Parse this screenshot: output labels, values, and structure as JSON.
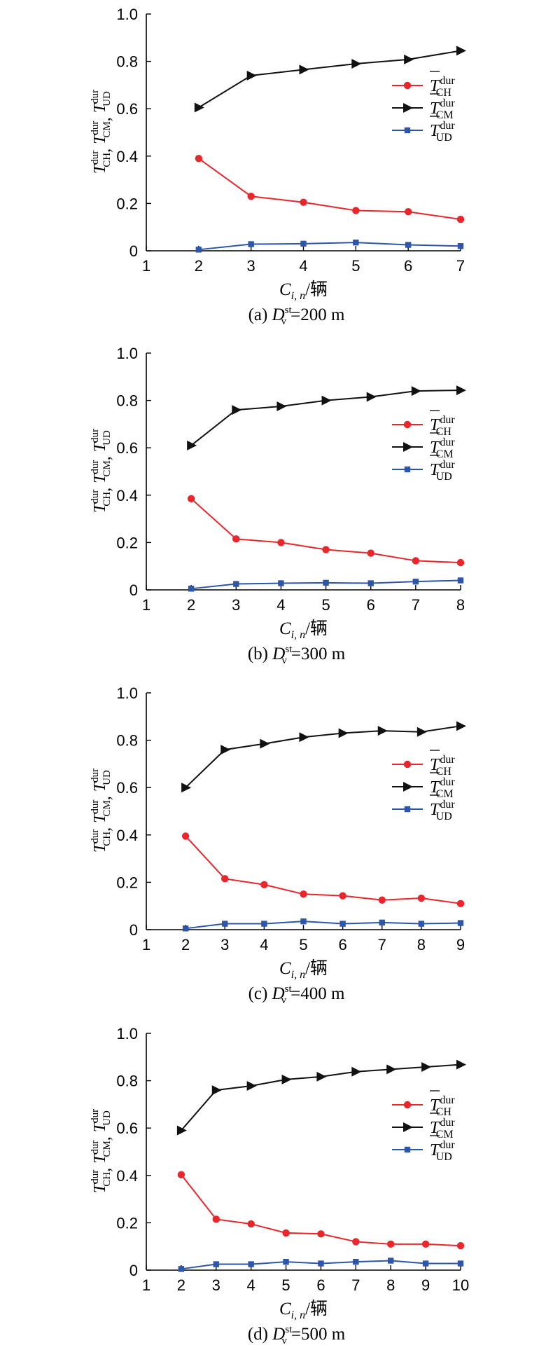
{
  "chart_data": [
    {
      "type": "line",
      "caption_prefix": "(a) ",
      "caption_var": "D",
      "caption_sub": "v",
      "caption_sup": "st",
      "caption_value": "=200 m",
      "xlabel_var": "C",
      "xlabel_sub": "i, n",
      "xlabel_unit": "/辆",
      "ylabel_parts": [
        "CH",
        "CM",
        "UD"
      ],
      "ylabel_var": "T",
      "ylabel_sup": "dur",
      "xlim": [
        1,
        7
      ],
      "ylim": [
        0,
        1.0
      ],
      "xticks": [
        "1",
        "2",
        "3",
        "4",
        "5",
        "6",
        "7"
      ],
      "yticks": [
        "0",
        "0.2",
        "0.4",
        "0.6",
        "0.8",
        "1.0"
      ],
      "x": [
        2,
        3,
        4,
        5,
        6,
        7
      ],
      "legend_position": "right-middle",
      "series": [
        {
          "name": "CH",
          "color": "#e8262b",
          "marker": "circle",
          "values": [
            0.39,
            0.23,
            0.205,
            0.17,
            0.165,
            0.133
          ]
        },
        {
          "name": "CM",
          "color": "#111111",
          "marker": "triangle-right",
          "values": [
            0.605,
            0.74,
            0.765,
            0.79,
            0.808,
            0.845
          ]
        },
        {
          "name": "UD",
          "color": "#2d55a8",
          "marker": "square",
          "values": [
            0.005,
            0.028,
            0.03,
            0.035,
            0.025,
            0.02
          ]
        }
      ]
    },
    {
      "type": "line",
      "caption_prefix": "(b) ",
      "caption_var": "D",
      "caption_sub": "v",
      "caption_sup": "st",
      "caption_value": "=300 m",
      "xlabel_var": "C",
      "xlabel_sub": "i, n",
      "xlabel_unit": "/辆",
      "ylabel_parts": [
        "CH",
        "CM",
        "UD"
      ],
      "ylabel_var": "T",
      "ylabel_sup": "dur",
      "xlim": [
        1,
        8
      ],
      "ylim": [
        0,
        1.0
      ],
      "xticks": [
        "1",
        "2",
        "3",
        "4",
        "5",
        "6",
        "7",
        "8"
      ],
      "yticks": [
        "0",
        "0.2",
        "0.4",
        "0.6",
        "0.8",
        "1.0"
      ],
      "x": [
        2,
        3,
        4,
        5,
        6,
        7,
        8
      ],
      "legend_position": "right-middle",
      "series": [
        {
          "name": "CH",
          "color": "#e8262b",
          "marker": "circle",
          "values": [
            0.385,
            0.215,
            0.2,
            0.17,
            0.155,
            0.123,
            0.115
          ]
        },
        {
          "name": "CM",
          "color": "#111111",
          "marker": "triangle-right",
          "values": [
            0.61,
            0.76,
            0.775,
            0.8,
            0.815,
            0.84,
            0.843
          ]
        },
        {
          "name": "UD",
          "color": "#2d55a8",
          "marker": "square",
          "values": [
            0.005,
            0.025,
            0.028,
            0.03,
            0.028,
            0.035,
            0.04
          ]
        }
      ]
    },
    {
      "type": "line",
      "caption_prefix": "(c) ",
      "caption_var": "D",
      "caption_sub": "v",
      "caption_sup": "st",
      "caption_value": "=400 m",
      "xlabel_var": "C",
      "xlabel_sub": "i, n",
      "xlabel_unit": "/辆",
      "ylabel_parts": [
        "CH",
        "CM",
        "UD"
      ],
      "ylabel_var": "T",
      "ylabel_sup": "dur",
      "xlim": [
        1,
        9
      ],
      "ylim": [
        0,
        1.0
      ],
      "xticks": [
        "1",
        "2",
        "3",
        "4",
        "5",
        "6",
        "7",
        "8",
        "9"
      ],
      "yticks": [
        "0",
        "0.2",
        "0.4",
        "0.6",
        "0.8",
        "1.0"
      ],
      "x": [
        2,
        3,
        4,
        5,
        6,
        7,
        8,
        9
      ],
      "legend_position": "right-middle",
      "series": [
        {
          "name": "CH",
          "color": "#e8262b",
          "marker": "circle",
          "values": [
            0.395,
            0.215,
            0.19,
            0.15,
            0.143,
            0.125,
            0.133,
            0.11
          ]
        },
        {
          "name": "CM",
          "color": "#111111",
          "marker": "triangle-right",
          "values": [
            0.6,
            0.76,
            0.785,
            0.813,
            0.83,
            0.84,
            0.835,
            0.86
          ]
        },
        {
          "name": "UD",
          "color": "#2d55a8",
          "marker": "square",
          "values": [
            0.005,
            0.025,
            0.025,
            0.035,
            0.025,
            0.03,
            0.025,
            0.028
          ]
        }
      ]
    },
    {
      "type": "line",
      "caption_prefix": "(d) ",
      "caption_var": "D",
      "caption_sub": "v",
      "caption_sup": "st",
      "caption_value": "=500 m",
      "xlabel_var": "C",
      "xlabel_sub": "i, n",
      "xlabel_unit": "/辆",
      "ylabel_parts": [
        "CH",
        "CM",
        "UD"
      ],
      "ylabel_var": "T",
      "ylabel_sup": "dur",
      "xlim": [
        1,
        10
      ],
      "ylim": [
        0,
        1.0
      ],
      "xticks": [
        "1",
        "2",
        "3",
        "4",
        "5",
        "6",
        "7",
        "8",
        "9",
        "10"
      ],
      "yticks": [
        "0",
        "0.2",
        "0.4",
        "0.6",
        "0.8",
        "1.0"
      ],
      "x": [
        2,
        3,
        4,
        5,
        6,
        7,
        8,
        9,
        10
      ],
      "legend_position": "right-middle",
      "series": [
        {
          "name": "CH",
          "color": "#e8262b",
          "marker": "circle",
          "values": [
            0.403,
            0.215,
            0.195,
            0.157,
            0.153,
            0.12,
            0.11,
            0.11,
            0.103
          ]
        },
        {
          "name": "CM",
          "color": "#111111",
          "marker": "triangle-right",
          "values": [
            0.59,
            0.76,
            0.778,
            0.805,
            0.817,
            0.838,
            0.848,
            0.858,
            0.868
          ]
        },
        {
          "name": "UD",
          "color": "#2d55a8",
          "marker": "square",
          "values": [
            0.005,
            0.025,
            0.025,
            0.035,
            0.028,
            0.035,
            0.04,
            0.028,
            0.028
          ]
        }
      ]
    }
  ]
}
